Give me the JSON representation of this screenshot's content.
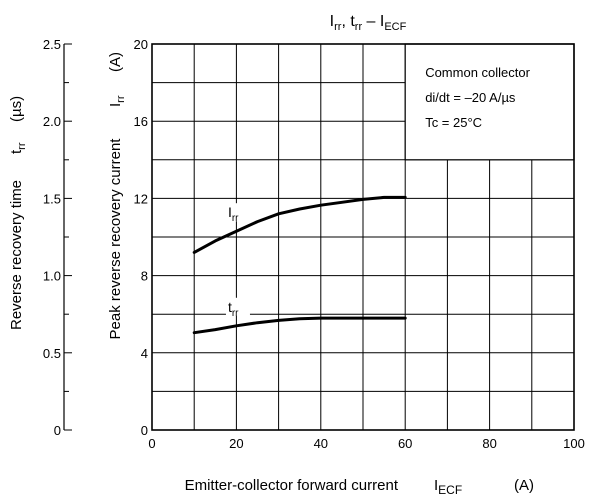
{
  "chart_data": {
    "type": "line",
    "title": {
      "a": "I",
      "a_sub": "rr",
      "b": ", t",
      "b_sub": "rr",
      "c": " – I",
      "c_sub": "ECF"
    },
    "xlabel": {
      "main": "Emitter-collector forward current",
      "sym": "I",
      "sym_sub": "ECF",
      "unit": "(A)"
    },
    "ylabel_right": {
      "main": "Peak reverse recovery current",
      "sym": "I",
      "sym_sub": "rr",
      "unit": "(A)"
    },
    "ylabel_left": {
      "main": "Reverse recovery time",
      "sym": "t",
      "sym_sub": "rr",
      "unit": "(µs)"
    },
    "xlim": [
      0,
      100
    ],
    "ylim": [
      0,
      20
    ],
    "ylim_left": [
      0,
      2.5
    ],
    "x_ticks": [
      "0",
      "20",
      "40",
      "60",
      "80",
      "100"
    ],
    "y_ticks": [
      "0",
      "4",
      "8",
      "12",
      "16",
      "20"
    ],
    "y_left_ticks": [
      "0",
      "0.5",
      "1.0",
      "1.5",
      "2.0",
      "2.5"
    ],
    "grid": true,
    "conditions": [
      "Common collector",
      "di/dt = –20 A/µs",
      "Tc = 25°C"
    ],
    "series": [
      {
        "name": "Irr",
        "label": {
          "sym": "I",
          "sub": "rr"
        },
        "axis": "right",
        "unit": "A",
        "points": [
          [
            10,
            9.2
          ],
          [
            15,
            9.8
          ],
          [
            20,
            10.3
          ],
          [
            25,
            10.8
          ],
          [
            30,
            11.2
          ],
          [
            35,
            11.45
          ],
          [
            40,
            11.65
          ],
          [
            45,
            11.8
          ],
          [
            50,
            11.95
          ],
          [
            55,
            12.05
          ],
          [
            60,
            12.05
          ]
        ]
      },
      {
        "name": "trr",
        "label": {
          "sym": "t",
          "sub": "rr"
        },
        "axis": "left",
        "unit": "µs",
        "points": [
          [
            10,
            0.63
          ],
          [
            15,
            0.65
          ],
          [
            20,
            0.675
          ],
          [
            25,
            0.695
          ],
          [
            30,
            0.71
          ],
          [
            35,
            0.72
          ],
          [
            40,
            0.725
          ],
          [
            45,
            0.725
          ],
          [
            50,
            0.725
          ],
          [
            55,
            0.725
          ],
          [
            60,
            0.725
          ]
        ]
      }
    ]
  }
}
